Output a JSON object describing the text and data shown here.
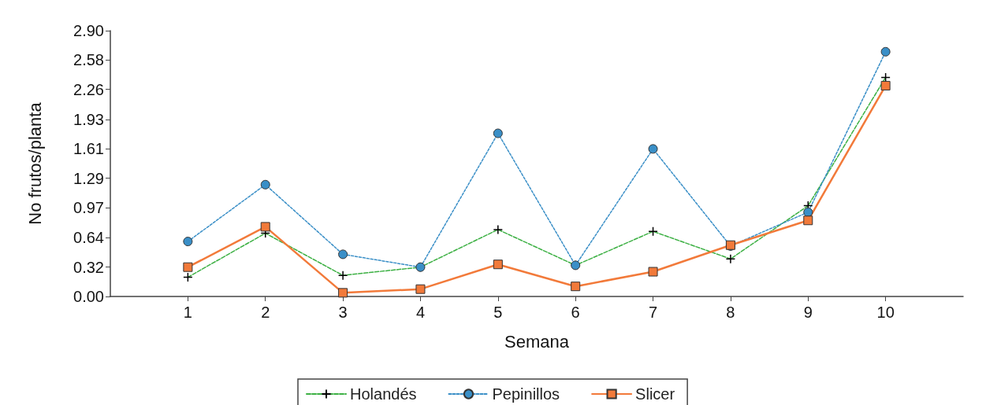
{
  "chart_data": {
    "type": "line",
    "xlabel": "Semana",
    "ylabel": "No frutos/planta",
    "x": [
      1,
      2,
      3,
      4,
      5,
      6,
      7,
      8,
      9,
      10
    ],
    "xlim": [
      0,
      11
    ],
    "xticks": [
      1,
      2,
      3,
      4,
      5,
      6,
      7,
      8,
      9,
      10
    ],
    "ylim": [
      0,
      2.9
    ],
    "yticks": [
      {
        "value": 0,
        "label": "0.00"
      },
      0.32,
      0.64,
      0.97,
      1.29,
      1.61,
      1.93,
      2.26,
      2.58,
      {
        "value": 2.9,
        "label": "2.90"
      }
    ],
    "series": [
      {
        "name": "Holandés",
        "color": "#3cb043",
        "marker": "cross",
        "line_style": "dashed",
        "values": [
          0.21,
          0.69,
          0.23,
          0.32,
          0.73,
          0.34,
          0.71,
          0.41,
          0.99,
          2.39
        ]
      },
      {
        "name": "Pepinillos",
        "color": "#3a8fc7",
        "marker": "circle",
        "line_style": "dotted",
        "values": [
          0.6,
          1.22,
          0.46,
          0.32,
          1.78,
          0.34,
          1.61,
          0.55,
          0.92,
          2.67
        ]
      },
      {
        "name": "Slicer",
        "color": "#f27a3a",
        "marker": "square",
        "line_style": "solid",
        "values": [
          0.32,
          0.76,
          0.04,
          0.08,
          0.35,
          0.11,
          0.27,
          0.56,
          0.83,
          2.3
        ]
      }
    ],
    "legend": "bottom",
    "grid": false
  }
}
